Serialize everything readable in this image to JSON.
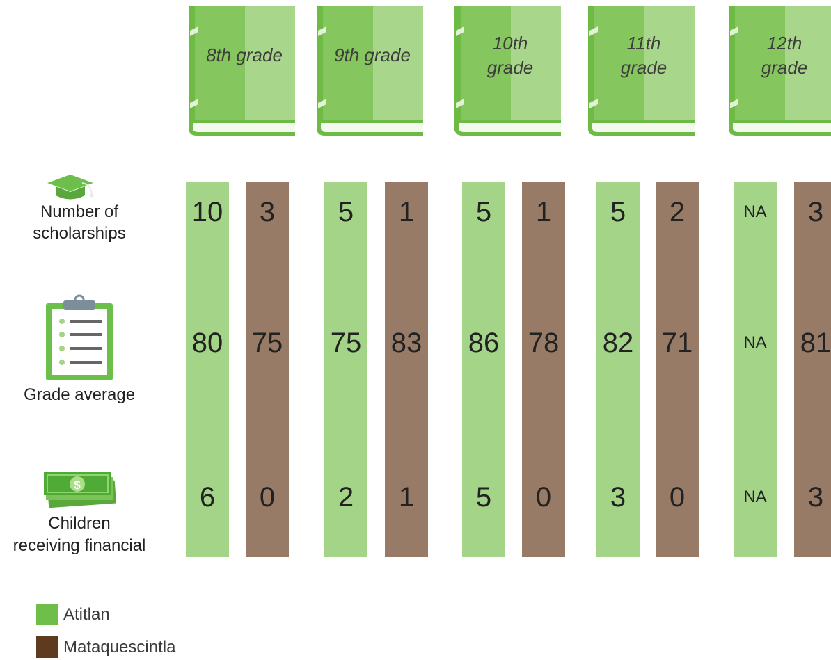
{
  "chart_data": {
    "type": "table",
    "grades": [
      "8th grade",
      "9th grade",
      "10th grade",
      "11th grade",
      "12th grade"
    ],
    "series": [
      {
        "name": "Atitlan",
        "color": "#a3d488"
      },
      {
        "name": "Mataquescintla",
        "color": "#987b66"
      }
    ],
    "rows": [
      {
        "label": [
          "Number of",
          "scholarships"
        ],
        "icon": "graduation-cap-icon",
        "values": [
          [
            "10",
            "3"
          ],
          [
            "5",
            "1"
          ],
          [
            "5",
            "1"
          ],
          [
            "5",
            "2"
          ],
          [
            "NA",
            "3"
          ]
        ]
      },
      {
        "label": [
          "Grade average"
        ],
        "icon": "clipboard-icon",
        "values": [
          [
            "80",
            "75"
          ],
          [
            "75",
            "83"
          ],
          [
            "86",
            "78"
          ],
          [
            "82",
            "71"
          ],
          [
            "NA",
            "81"
          ]
        ]
      },
      {
        "label": [
          "Children",
          "receiving financial"
        ],
        "icon": "money-icon",
        "values": [
          [
            "6",
            "0"
          ],
          [
            "2",
            "1"
          ],
          [
            "5",
            "0"
          ],
          [
            "3",
            "0"
          ],
          [
            "NA",
            "3"
          ]
        ]
      }
    ]
  },
  "legend": [
    {
      "name": "Atitlan",
      "color": "#6fbe4a"
    },
    {
      "name": "Mataquescintla",
      "color": "#5e3a1e"
    }
  ],
  "colors": {
    "book_dark": "#86c65e",
    "book_light": "#a8d68a",
    "book_spine": "#6dba44",
    "icon_green": "#6cbf4a"
  }
}
